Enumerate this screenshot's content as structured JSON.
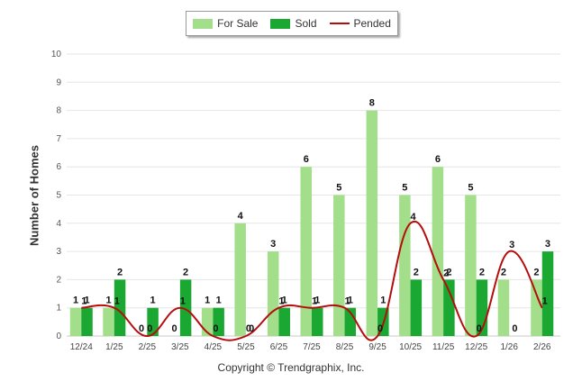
{
  "chart_data": {
    "type": "bar",
    "categories": [
      "12/24",
      "1/25",
      "2/25",
      "3/25",
      "4/25",
      "5/25",
      "6/25",
      "7/25",
      "8/25",
      "9/25",
      "10/25",
      "11/25",
      "12/25",
      "1/26",
      "2/26"
    ],
    "series": [
      {
        "name": "For Sale",
        "type": "bar",
        "color": "#a3de8a",
        "values": [
          1,
          1,
          0,
          0,
          1,
          4,
          3,
          6,
          5,
          8,
          5,
          6,
          5,
          2,
          2
        ]
      },
      {
        "name": "Sold",
        "type": "bar",
        "color": "#1aa832",
        "values": [
          1,
          2,
          1,
          2,
          1,
          0,
          1,
          1,
          1,
          1,
          2,
          2,
          2,
          0,
          3
        ]
      },
      {
        "name": "Pended",
        "type": "line",
        "color": "#b50d0d",
        "values": [
          1,
          1,
          0,
          1,
          0,
          0,
          1,
          1,
          1,
          0,
          4,
          2,
          0,
          3,
          1
        ]
      }
    ],
    "ylabel": "Number of Homes",
    "ylim": [
      0,
      10
    ],
    "yticks": [
      0,
      1,
      2,
      3,
      4,
      5,
      6,
      7,
      8,
      9,
      10
    ],
    "grid": true,
    "legend": "top-center"
  },
  "footer": {
    "copyright": "Copyright © Trendgraphix, Inc."
  }
}
